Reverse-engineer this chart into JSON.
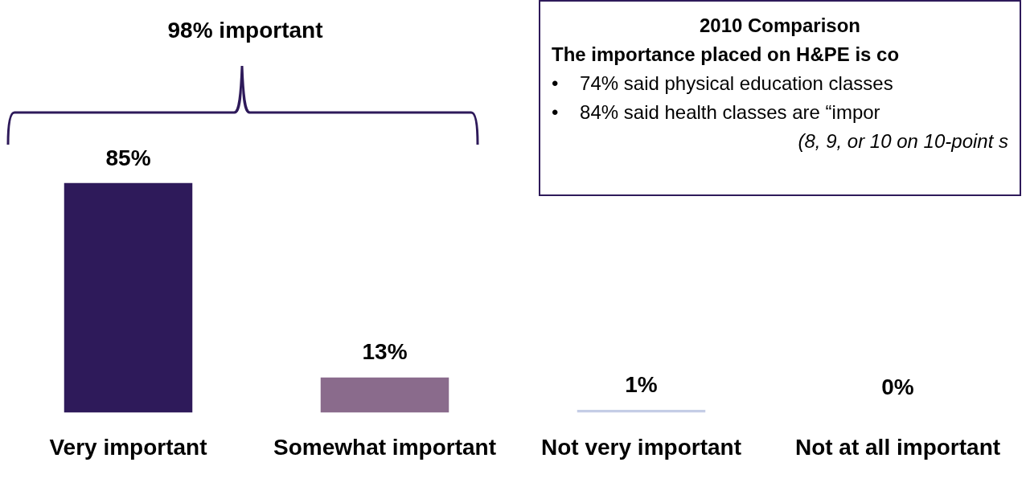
{
  "chart_data": {
    "type": "bar",
    "categories": [
      "Very important",
      "Somewhat important",
      "Not very important",
      "Not at all important"
    ],
    "values": [
      85,
      13,
      1,
      0
    ],
    "colors": [
      "#2e1a5a",
      "#8a6b8c",
      "#c5cde6",
      "#c5cde6"
    ],
    "value_labels": [
      "85%",
      "13%",
      "1%",
      "0%"
    ],
    "grid": false,
    "legend": false,
    "annotations": [
      "98% important",
      "2010 Comparison",
      "The importance placed on H&PE is co",
      "•    74% said physical education classes",
      "•    84% said health classes are “impor",
      "(8, 9, or 10 on 10-point s"
    ]
  }
}
